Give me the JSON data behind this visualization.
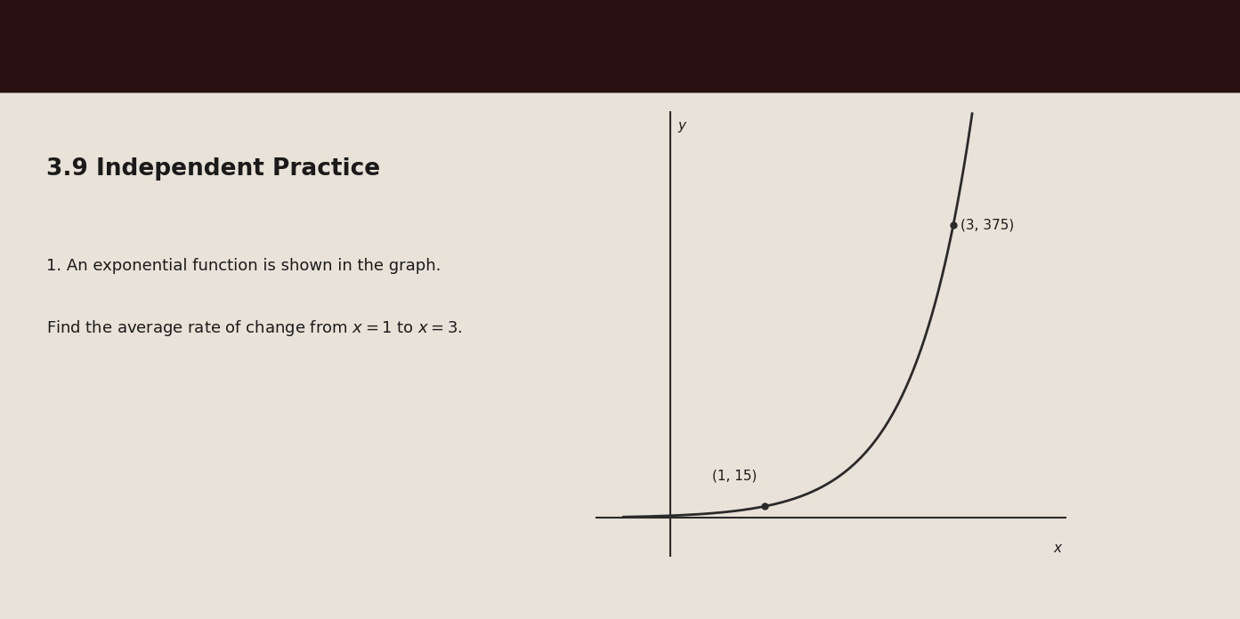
{
  "title": "3.9 Independent Practice",
  "problem_line1": "1. An exponential function is shown in the graph.",
  "problem_line2": "Find the average rate of change from $x = 1$ to $x = 3$.",
  "paper_color": "#e8e2d8",
  "dark_top_color": "#3a1a1a",
  "text_color": "#1a1a1a",
  "curve_color": "#2a2a2a",
  "axis_color": "#2a2a2a",
  "point1": [
    1,
    15
  ],
  "point2": [
    3,
    375
  ],
  "point1_label": "(1, 15)",
  "point2_label": "(3, 375)",
  "y_label": "y",
  "x_label": "x",
  "xlim": [
    -0.8,
    4.2
  ],
  "ylim": [
    -50,
    520
  ]
}
